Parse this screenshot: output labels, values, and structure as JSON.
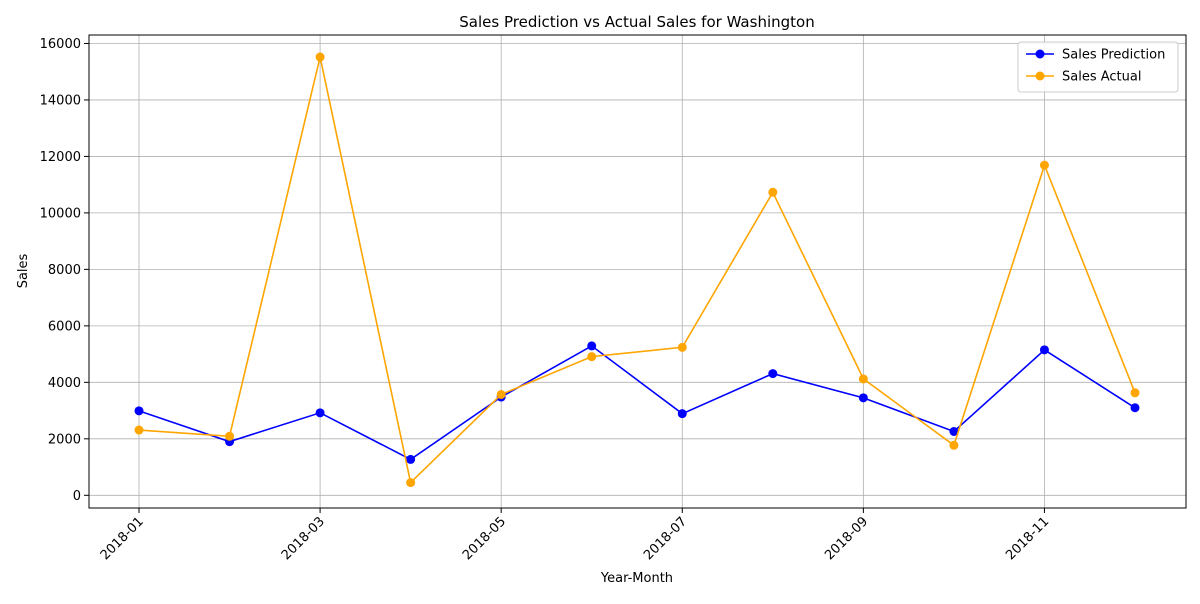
{
  "chart_data": {
    "type": "line",
    "title": "Sales Prediction vs Actual Sales for Washington",
    "xlabel": "Year-Month",
    "ylabel": "Sales",
    "grid": true,
    "legend_position": "top-right",
    "x": [
      "2018-01",
      "2018-02",
      "2018-03",
      "2018-04",
      "2018-05",
      "2018-06",
      "2018-07",
      "2018-08",
      "2018-09",
      "2018-10",
      "2018-11",
      "2018-12"
    ],
    "x_tick_labels": [
      "2018-01",
      "2018-03",
      "2018-05",
      "2018-07",
      "2018-09",
      "2018-11"
    ],
    "y_ticks": [
      0,
      2000,
      4000,
      6000,
      8000,
      10000,
      12000,
      14000,
      16000
    ],
    "ylim": [
      -450,
      16300
    ],
    "series": [
      {
        "name": "Sales Prediction",
        "color": "#0000ff",
        "marker": "circle",
        "values": [
          2990,
          1900,
          2920,
          1270,
          3480,
          5290,
          2890,
          4310,
          3450,
          2260,
          5150,
          3100
        ]
      },
      {
        "name": "Sales Actual",
        "color": "#ffa500",
        "marker": "circle",
        "values": [
          2310,
          2090,
          15520,
          450,
          3570,
          4910,
          5240,
          10730,
          4120,
          1770,
          11690,
          3630
        ]
      }
    ]
  }
}
